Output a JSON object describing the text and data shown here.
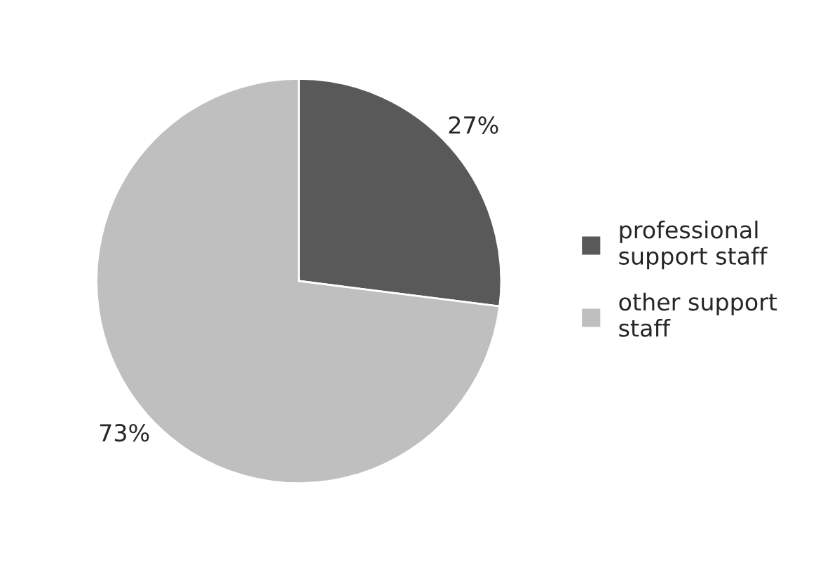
{
  "chart_data": {
    "type": "pie",
    "categories": [
      "professional\nsupport staff",
      "other support\nstaff"
    ],
    "values": [
      27,
      73
    ],
    "colors": [
      "#595959",
      "#bfbfbf"
    ],
    "value_labels": [
      "27%",
      "73%"
    ],
    "legend": "right"
  }
}
